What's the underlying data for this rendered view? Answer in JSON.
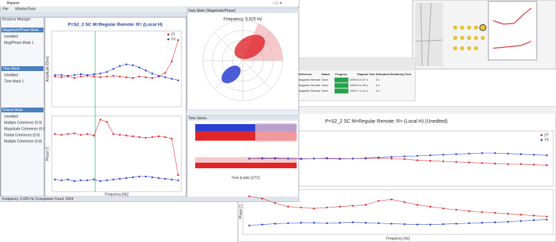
{
  "main_window": {
    "title": "Bitpanel",
    "menu": [
      "File",
      "Window",
      "Tools"
    ],
    "sessions": {
      "title": "Sessions Manager",
      "sections": [
        {
          "title": "Magnitude/Phase Mask",
          "items": [
            "Unedited",
            "Mag/Phase Mask 1"
          ]
        },
        {
          "title": "Time Mask",
          "items": [
            "Unedited",
            "Time Mask 1"
          ]
        },
        {
          "title": "Robust Mask",
          "items": [
            "Unedited",
            "Multiple Coherence (0.9)",
            "Magnitude Coherence (0.9)",
            "Partial Coherence (0.9)",
            "Multiple Coherence (0.8)"
          ]
        }
      ]
    },
    "plot": {
      "title": "P=S2_2 SC M=Regular Remote: R= (Local H)",
      "amp_label": "Amplitude [Ohm]",
      "phase_label": "Phase [°]",
      "x_label": "Frequency [Hz]",
      "amplitude": {
        "ylim": [
          0,
          100
        ],
        "series": [
          {
            "name": "ZY",
            "color": "#e0262b",
            "values": [
              40,
              39,
              40,
              38,
              40,
              41,
              40,
              39,
              40,
              41,
              40,
              39,
              38,
              40,
              39,
              38,
              40,
              45,
              60,
              88
            ]
          },
          {
            "name": "YX",
            "color": "#2a3fd1",
            "values": [
              42,
              42,
              41,
              42,
              43,
              42,
              43,
              44,
              46,
              50,
              54,
              56,
              55,
              52,
              48,
              44,
              41,
              39,
              37,
              35
            ]
          }
        ]
      },
      "phase": {
        "ylim": [
          0,
          100
        ],
        "series": [
          {
            "name": "ZY",
            "color": "#e0262b",
            "values": [
              76,
              75,
              76,
              77,
              75,
              76,
              74,
              95,
              92,
              76,
              75,
              74,
              73,
              72,
              71,
              72,
              73,
              72,
              70,
              22
            ]
          },
          {
            "name": "YX",
            "color": "#2a3fd1",
            "values": [
              16,
              15,
              16,
              14,
              15,
              15,
              16,
              14,
              15,
              16,
              17,
              18,
              19,
              20,
              20,
              19,
              18,
              17,
              16,
              15
            ]
          }
        ]
      }
    },
    "polar": {
      "title": "Data Slider (Magnitude/Phase)",
      "frequency": "Frequency: 5.625 Hz"
    },
    "time": {
      "title": "Time Series",
      "x_label": "Time & date [UTC]"
    },
    "status": "Frequency: 5.625 Hz   Crosspower Count: 2034"
  },
  "table": {
    "headers": [
      "Reference",
      "Status",
      "Progress",
      "Elapsed Time",
      "Estimated Remaining Time"
    ],
    "rows": [
      [
        "Magnetic Remote",
        "Done",
        "100%",
        "6 m 47 s",
        "0 s"
      ],
      [
        "Magnetic Remote",
        "Done",
        "100%",
        "5 m 35 s",
        "0 s"
      ],
      [
        "Magnetic Remote",
        "Done",
        "100%",
        "7 m 11 s",
        "0 s"
      ]
    ]
  },
  "second_window": {
    "title": "P=S2_2 SC M=Regular Remote: R= (Local H) (Unedited)",
    "phase_label": "Phase [°]",
    "x_label": "Frequency [Hz]",
    "amplitude": {
      "ylim": [
        0,
        100
      ],
      "series": [
        {
          "name": "ZY",
          "color": "#e0262b",
          "values": [
            50,
            51,
            50,
            50,
            49,
            50,
            50,
            49,
            50,
            50,
            51,
            50,
            49,
            47,
            46,
            45,
            44,
            43,
            42,
            41,
            40,
            40,
            39,
            38
          ]
        },
        {
          "name": "YX",
          "color": "#2a3fd1",
          "values": [
            50,
            50,
            51,
            50,
            50,
            50,
            51,
            50,
            50,
            51,
            52,
            53,
            54,
            55,
            56,
            57,
            58,
            59,
            60,
            60,
            59,
            58,
            57,
            56
          ]
        }
      ]
    },
    "phase": {
      "ylim": [
        0,
        100
      ],
      "series": [
        {
          "name": "ZY",
          "color": "#e0262b",
          "values": [
            85,
            80,
            70,
            62,
            60,
            58,
            60,
            62,
            64,
            66,
            75,
            78,
            72,
            66,
            62,
            58,
            55,
            52,
            50,
            48,
            46,
            44,
            42,
            40
          ]
        },
        {
          "name": "YX",
          "color": "#2a3fd1",
          "values": [
            20,
            22,
            24,
            25,
            26,
            26,
            25,
            26,
            27,
            26,
            25,
            24,
            23,
            22,
            22,
            23,
            24,
            25,
            26,
            27,
            28,
            30,
            32,
            33
          ]
        }
      ]
    }
  }
}
